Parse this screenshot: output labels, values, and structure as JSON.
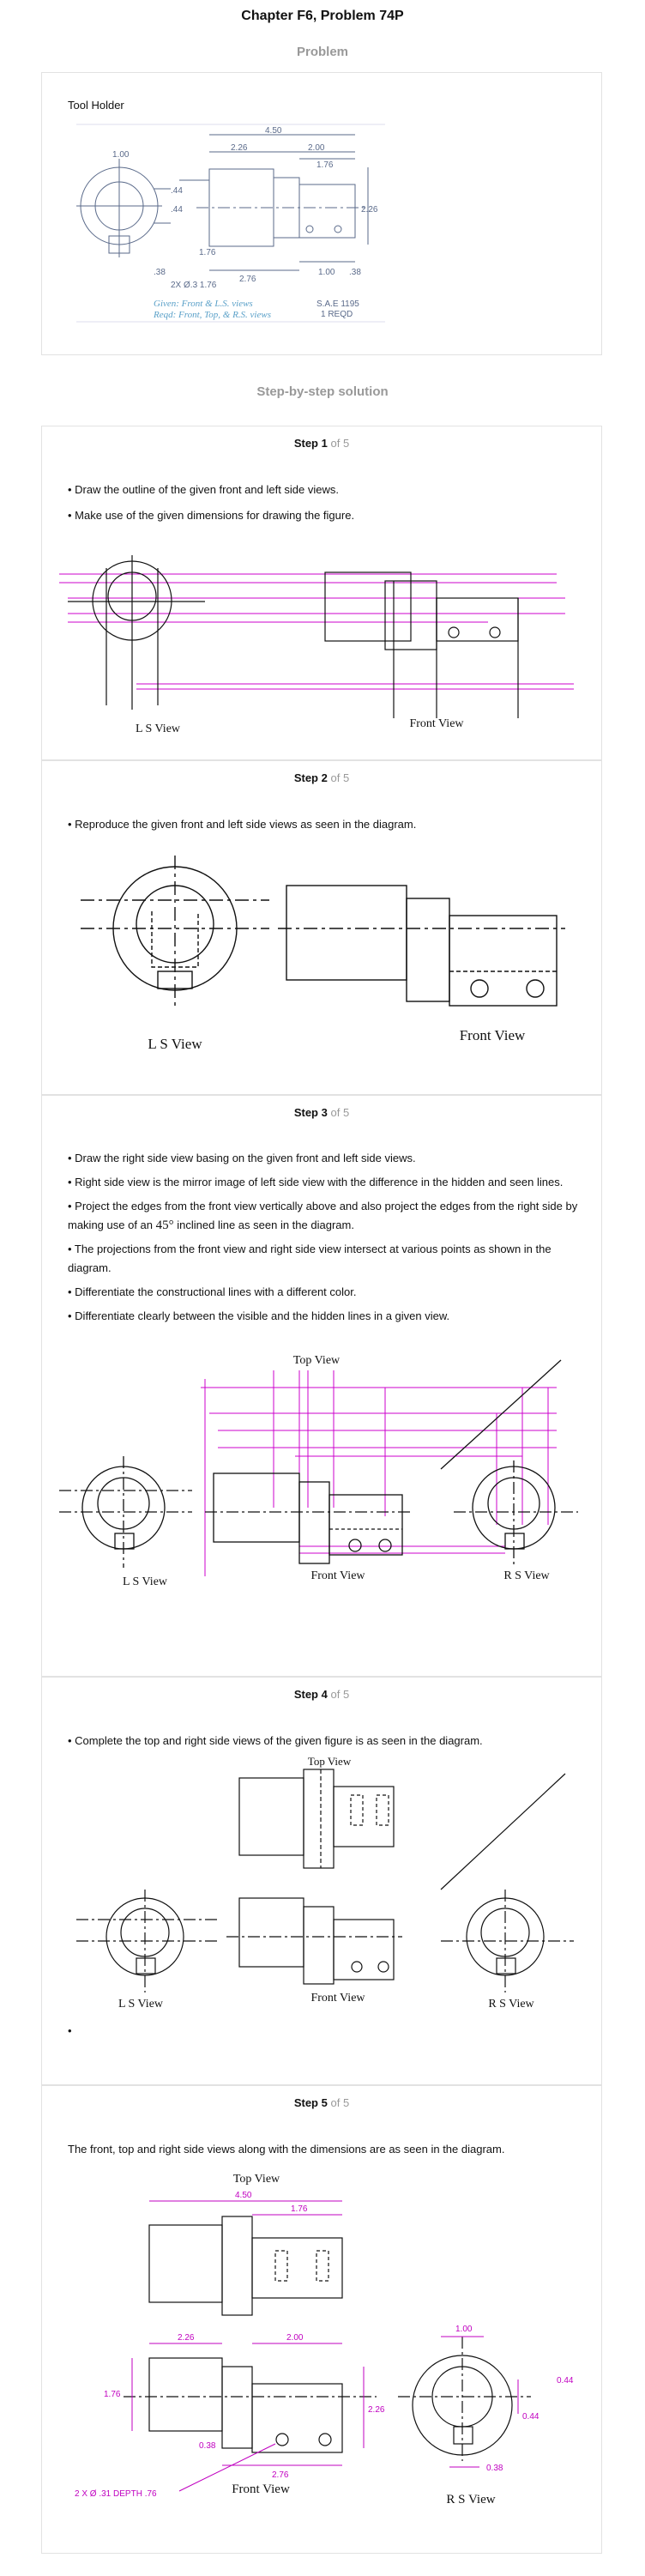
{
  "title": "Chapter F6, Problem 74P",
  "problem_heading": "Problem",
  "problem": {
    "label": "Tool Holder",
    "sketch": {
      "dims": [
        "4.50",
        "2.26",
        "2.00",
        "1.76",
        "1.00",
        ".44",
        ".44",
        "2.26",
        "1.76",
        ".38",
        "1.00",
        ".38",
        "2.76",
        "2X Ø.3 1.76"
      ],
      "note_line1": "Given: Front & L.S. views",
      "note_line2": "Reqd: Front, Top, & R.S. views",
      "material": "S.A.E 1195",
      "qty": "1 REQD"
    }
  },
  "solution_heading": "Step-by-step solution",
  "step_word": "Step",
  "step_total": "of 5",
  "steps": [
    {
      "num": "1",
      "bullets": [
        "• Draw the outline of the given front and left side views.",
        "• Make use of the given dimensions for drawing the figure."
      ],
      "labels": {
        "ls": "L S View",
        "front": "Front View"
      }
    },
    {
      "num": "2",
      "bullets": [
        "• Reproduce the given front and left side views as seen in the diagram."
      ],
      "labels": {
        "ls": "L S View",
        "front": "Front View"
      }
    },
    {
      "num": "3",
      "bullets": [
        "• Draw the right side view basing on the given front and left side views.",
        "• Right side view is the mirror image of left side view with the difference in the hidden and seen lines.",
        "• Project the edges from the front view vertically above and also project the edges from the right side by making use of an",
        "inclined line as seen in the diagram.",
        "• The projections from the front view and right side view intersect at various points as shown in the diagram.",
        "• Differentiate the constructional lines with a different color.",
        "• Differentiate clearly between the visible and the hidden lines in a given view."
      ],
      "angle": "45°",
      "labels": {
        "top": "Top View",
        "ls": "L S View",
        "front": "Front View",
        "rs": "R S View"
      }
    },
    {
      "num": "4",
      "bullets": [
        "• Complete the top and right side views of the given figure is as seen in the diagram.",
        "•"
      ],
      "labels": {
        "top": "Top View",
        "ls": "L S View",
        "front": "Front View",
        "rs": "R S View"
      }
    },
    {
      "num": "5",
      "bullets": [
        "The front, top and right side views along with the dimensions are as seen in the diagram."
      ],
      "labels": {
        "top": "Top View",
        "front": "Front View",
        "rs": "R S View"
      },
      "dims": {
        "top_450": "4.50",
        "top_176": "1.76",
        "f_226": "2.26",
        "f_200": "2.00",
        "f_176": "1.76",
        "f_226v": "2.26",
        "f_038": "0.38",
        "f_276": "2.76",
        "hole": "2 X Ø .31 DEPTH .76",
        "rs_100": "1.00",
        "rs_044a": "0.44",
        "rs_044b": "0.44",
        "rs_038": "0.38"
      }
    }
  ],
  "colors": {
    "construction": "#cc00cc",
    "dimension": "#c000c0",
    "ink": "#111111",
    "muted": "#999999",
    "border": "#e2e2e2"
  }
}
